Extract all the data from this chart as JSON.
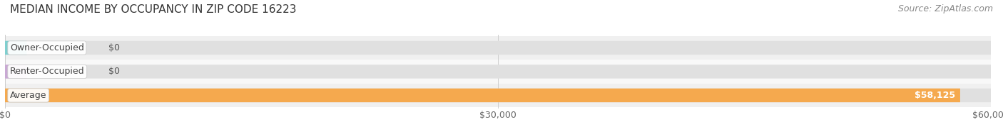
{
  "title": "MEDIAN INCOME BY OCCUPANCY IN ZIP CODE 16223",
  "source": "Source: ZipAtlas.com",
  "categories": [
    "Average",
    "Renter-Occupied",
    "Owner-Occupied"
  ],
  "values": [
    58125,
    0,
    0
  ],
  "bar_colors": [
    "#f5a94e",
    "#c9a8d4",
    "#7ecfcf"
  ],
  "value_labels": [
    "$58,125",
    "$0",
    "$0"
  ],
  "xlim": [
    0,
    60000
  ],
  "xticks": [
    0,
    30000,
    60000
  ],
  "xtick_labels": [
    "$0",
    "$30,000",
    "$60,000"
  ],
  "title_fontsize": 11,
  "source_fontsize": 9,
  "label_fontsize": 9,
  "value_fontsize": 9,
  "tick_fontsize": 9,
  "bar_height": 0.58,
  "background_color": "#ffffff"
}
